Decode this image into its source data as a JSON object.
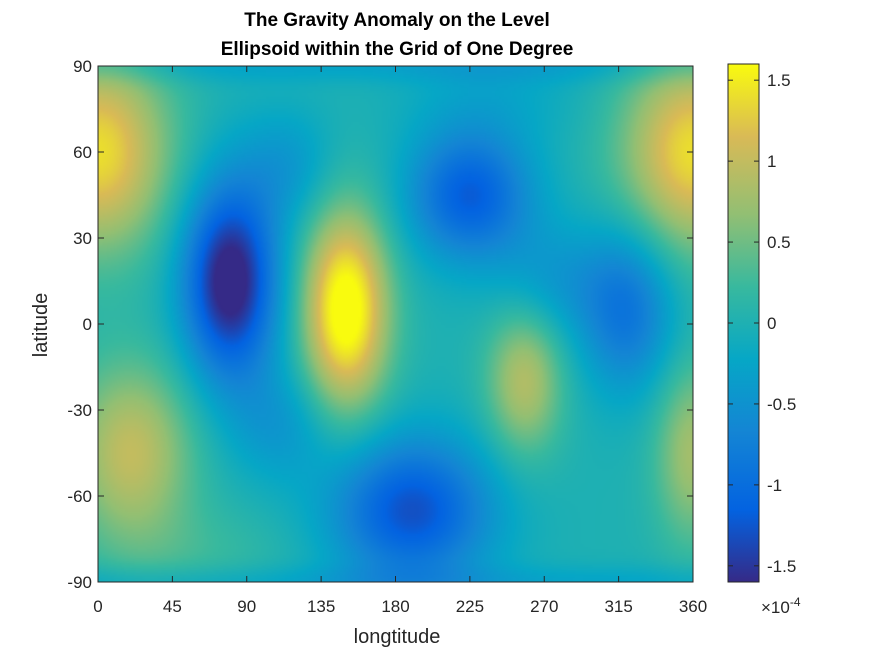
{
  "chart_data": {
    "type": "heatmap",
    "title": [
      "The Gravity Anomaly on the Level",
      "Ellipsoid within the Grid of One Degree"
    ],
    "xlabel": "longtitude",
    "ylabel": "latitude",
    "xlim": [
      0,
      360
    ],
    "ylim": [
      -90,
      90
    ],
    "xticks": [
      0,
      45,
      90,
      135,
      180,
      225,
      270,
      315,
      360
    ],
    "xtick_labels": [
      "0",
      "45",
      "90",
      "135",
      "180",
      "225",
      "270",
      "315",
      "360"
    ],
    "yticks": [
      90,
      60,
      30,
      0,
      -30,
      -60,
      -90
    ],
    "ytick_labels": [
      "90",
      "60",
      "30",
      "0",
      "-30",
      "-60",
      "-90"
    ],
    "colorbar": {
      "colormap": "parula",
      "clim": [
        -1.6,
        1.6
      ],
      "ticks": [
        1.5,
        1,
        0.5,
        0,
        -0.5,
        -1,
        -1.5
      ],
      "tick_labels": [
        "1.5",
        "1",
        "0.5",
        "0",
        "-0.5",
        "-1",
        "-1.5"
      ],
      "exponent_base": "×10",
      "exponent_power": "-4"
    },
    "features": [
      {
        "lon": 0,
        "lat": 60,
        "value": 1.4,
        "sigma_lon": 30,
        "sigma_lat": 24
      },
      {
        "lon": 360,
        "lat": 60,
        "value": 1.4,
        "sigma_lon": 30,
        "sigma_lat": 24
      },
      {
        "lon": 80,
        "lat": 15,
        "value": -1.8,
        "sigma_lon": 20,
        "sigma_lat": 24
      },
      {
        "lon": 150,
        "lat": 5,
        "value": 1.8,
        "sigma_lon": 18,
        "sigma_lat": 24
      },
      {
        "lon": 225,
        "lat": 45,
        "value": -1.2,
        "sigma_lon": 26,
        "sigma_lat": 16
      },
      {
        "lon": 190,
        "lat": -65,
        "value": -1.3,
        "sigma_lon": 34,
        "sigma_lat": 18
      },
      {
        "lon": 20,
        "lat": -45,
        "value": 1.0,
        "sigma_lon": 26,
        "sigma_lat": 22
      },
      {
        "lon": 360,
        "lat": -45,
        "value": 0.8,
        "sigma_lon": 16,
        "sigma_lat": 22
      },
      {
        "lon": 258,
        "lat": -20,
        "value": 0.9,
        "sigma_lon": 16,
        "sigma_lat": 18
      },
      {
        "lon": 320,
        "lat": 5,
        "value": -0.9,
        "sigma_lon": 20,
        "sigma_lat": 20
      },
      {
        "lon": 115,
        "lat": 55,
        "value": -0.4,
        "sigma_lon": 20,
        "sigma_lat": 14
      },
      {
        "lon": 110,
        "lat": -35,
        "value": -0.4,
        "sigma_lon": 22,
        "sigma_lat": 14
      },
      {
        "lon": 275,
        "lat": 15,
        "value": -0.4,
        "sigma_lon": 24,
        "sigma_lat": 14
      },
      {
        "lon": 60,
        "lat": -80,
        "value": 0.2,
        "sigma_lon": 40,
        "sigma_lat": 12
      },
      {
        "lon": 240,
        "lat": 80,
        "value": -0.2,
        "sigma_lon": 40,
        "sigma_lat": 12
      }
    ]
  }
}
